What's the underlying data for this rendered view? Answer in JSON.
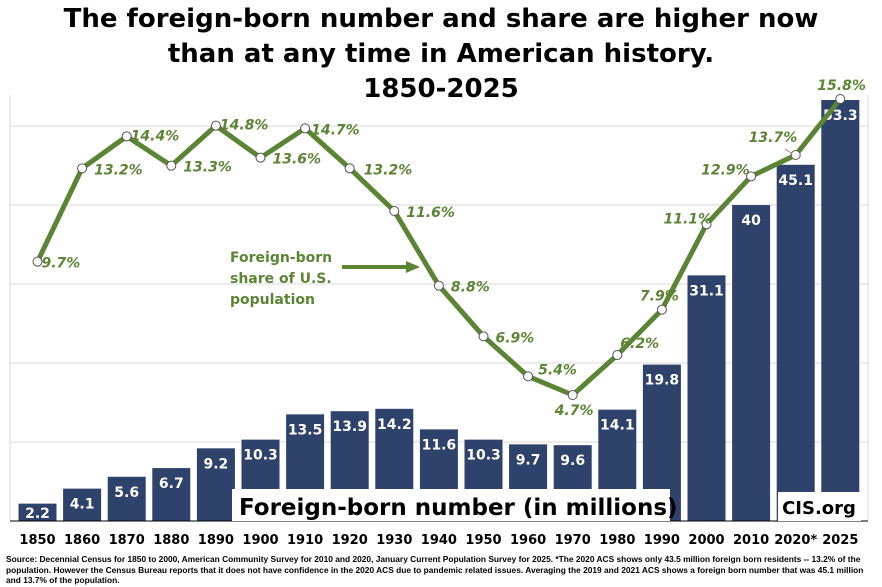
{
  "title_lines": [
    "The foreign-born number and share are higher now",
    "than at any time in American history.",
    "1850-2025"
  ],
  "colors": {
    "bar_fill": "#2e426b",
    "line": "#5b8434",
    "share_label": "#5b8434",
    "bar_label": "#ffffff",
    "grid": "#d9d9d9",
    "marker_fill": "#ffffff"
  },
  "chart_data": {
    "type": "bar+line",
    "categories": [
      "1850",
      "1860",
      "1870",
      "1880",
      "1890",
      "1900",
      "1910",
      "1920",
      "1930",
      "1940",
      "1950",
      "1960",
      "1970",
      "1980",
      "1990",
      "2000",
      "2010",
      "2020*",
      "2025"
    ],
    "series": [
      {
        "name": "Foreign-born number (in millions)",
        "type": "bar",
        "values": [
          2.2,
          4.1,
          5.6,
          6.7,
          9.2,
          10.3,
          13.5,
          13.9,
          14.2,
          11.6,
          10.3,
          9.7,
          9.6,
          14.1,
          19.8,
          31.1,
          40,
          45.1,
          53.3
        ],
        "labels": [
          "2.2",
          "4.1",
          "5.6",
          "6.7",
          "9.2",
          "10.3",
          "13.5",
          "13.9",
          "14.2",
          "11.6",
          "10.3",
          "9.7",
          "9.6",
          "14.1",
          "19.8",
          "31.1",
          "40",
          "45.1",
          "53.3"
        ]
      },
      {
        "name": "Foreign-born share of U.S. population",
        "type": "line",
        "values": [
          9.7,
          13.2,
          14.4,
          13.3,
          14.8,
          13.6,
          14.7,
          13.2,
          11.6,
          8.8,
          6.9,
          5.4,
          4.7,
          6.2,
          7.9,
          11.1,
          12.9,
          13.7,
          15.8
        ],
        "labels": [
          "9.7%",
          "13.2%",
          "14.4%",
          "13.3%",
          "14.8%",
          "13.6%",
          "14.7%",
          "13.2%",
          "11.6%",
          "8.8%",
          "6.9%",
          "5.4%",
          "4.7%",
          "6.2%",
          "7.9%",
          "11.1%",
          "12.9%",
          "13.7%",
          "15.8%"
        ]
      }
    ],
    "bar_ylim": [
      0,
      55
    ],
    "share_ylim": [
      3,
      16
    ],
    "grid": true,
    "line_annotation": [
      "Foreign-born",
      "share of U.S.",
      "population"
    ],
    "bar_legend": "Foreign-born number (in millions)",
    "credit": "CIS.org"
  },
  "source_note": "Source: Decennial Census for 1850 to 2000, American Community Survey for 2010 and 2020, January Current Population Survey for 2025.  *The 2020 ACS shows only 43.5 million foreign born residents -- 13.2% of the population. However the Census Bureau reports that it does not have confidence in the 2020 ACS due to pandemic related issues.  Averaging the 2019 and 2021 ACS shows a foreign born number that was 45.1 million and 13.7% of the population."
}
